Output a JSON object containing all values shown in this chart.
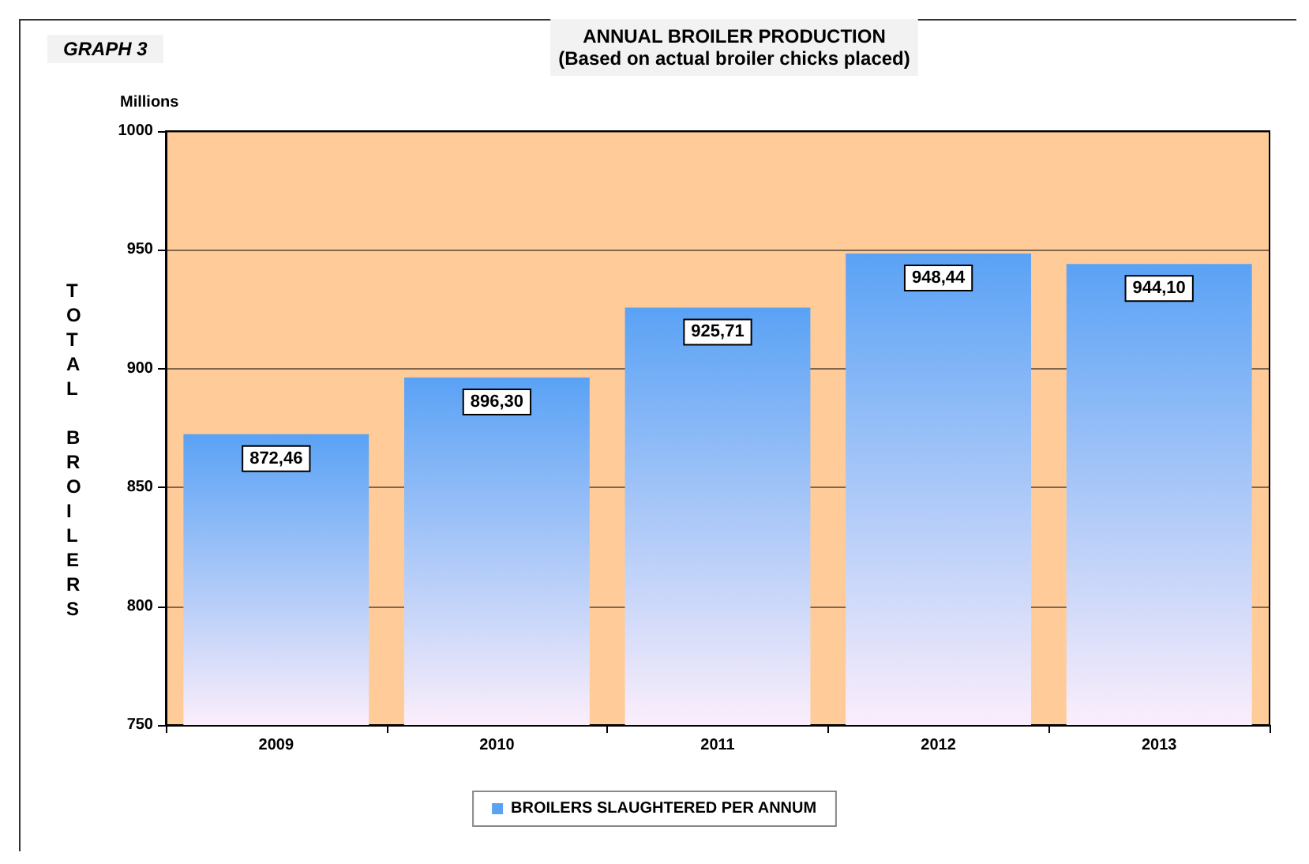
{
  "chart_data": {
    "type": "bar",
    "title": "ANNUAL BROILER PRODUCTION",
    "subtitle": "(Based on actual broiler chicks placed)",
    "ylabel": "TOTAL BROILERS",
    "annotations": [
      "GRAPH 3",
      "Millions"
    ],
    "categories": [
      "2009",
      "2010",
      "2011",
      "2012",
      "2013"
    ],
    "series": [
      {
        "name": "BROILERS SLAUGHTERED PER ANNUM",
        "color": "#5aa2f5",
        "values": [
          872.46,
          896.3,
          925.71,
          948.44,
          944.1
        ],
        "value_labels": [
          "872,46",
          "896,30",
          "925,71",
          "948,44",
          "944,10"
        ]
      }
    ],
    "ylim": [
      750,
      1000
    ],
    "yticks": [
      750,
      800,
      850,
      900,
      950,
      1000
    ],
    "grid": "y",
    "legend": "bottom"
  }
}
